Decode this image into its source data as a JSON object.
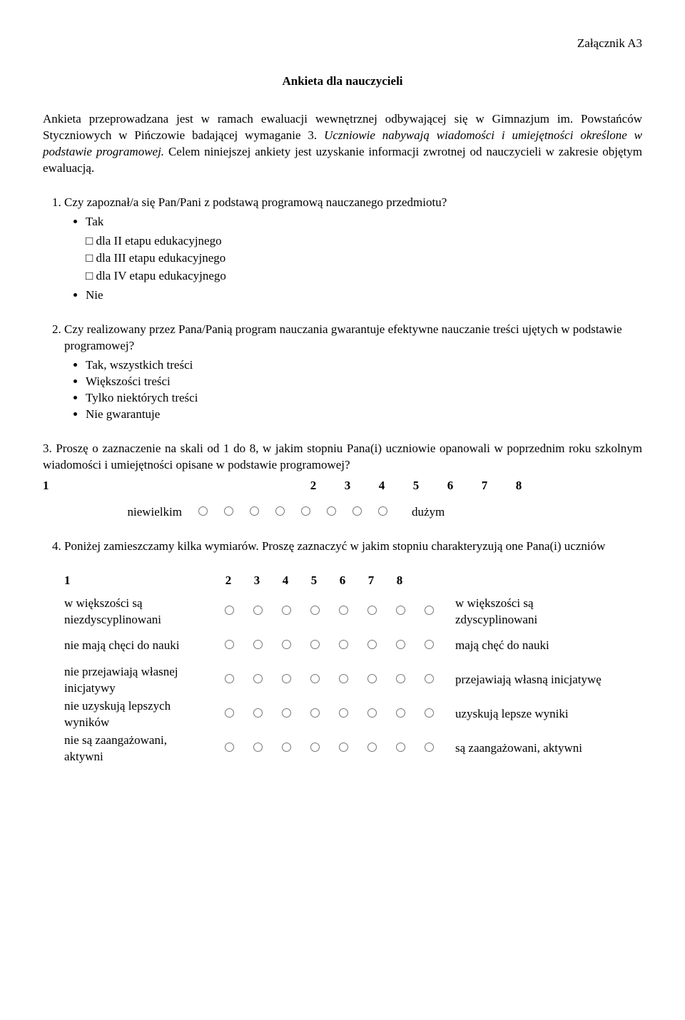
{
  "attachment": "Załącznik A3",
  "title": "Ankieta dla nauczycieli",
  "intro_plain1": "Ankieta przeprowadzana jest w ramach ewaluacji wewnętrznej odbywającej się w Gimnazjum im. Powstańców Styczniowych w Pińczowie badającej wymaganie 3.",
  "intro_italic": "Uczniowie nabywają wiadomości i umiejętności określone w podstawie programowej.",
  "intro_plain2": " Celem niniejszej ankiety jest uzyskanie informacji zwrotnej od nauczycieli w zakresie objętym ewaluacją.",
  "q1": {
    "text": "Czy zapoznał/a się Pan/Pani z podstawą programową nauczanego przedmiotu?",
    "opt_yes": "Tak",
    "chk1": "dla II etapu edukacyjnego",
    "chk2": "dla III etapu edukacyjnego",
    "chk3": "dla IV etapu edukacyjnego",
    "opt_no": "Nie"
  },
  "q2": {
    "text": "Czy realizowany przez Pana/Panią program nauczania gwarantuje efektywne nauczanie treści ujętych w podstawie programowej?",
    "o1": "Tak, wszystkich treści",
    "o2": "Większości treści",
    "o3": "Tylko niektórych treści",
    "o4": "Nie gwarantuje"
  },
  "q3": {
    "text": "3.   Proszę o zaznaczenie na skali   od 1 do 8, w jakim stopniu Pana(i) uczniowie opanowali w poprzednim roku szkolnym wiadomości i umiejętności opisane w podstawie programowej?",
    "n1": "1",
    "n2": "2",
    "n3": "3",
    "n4": "4",
    "n5": "5",
    "n6": "6",
    "n7": "7",
    "n8": "8",
    "left": "niewielkim",
    "right": "dużym"
  },
  "q4": {
    "text": "Poniżej zamieszczamy kilka wymiarów. Proszę zaznaczyć w jakim stopniu charakteryzują one Pana(i) uczniów",
    "h1": "1",
    "h2": "2",
    "h3": "3",
    "h4": "4",
    "h5": "5",
    "h6": "6",
    "h7": "7",
    "h8": "8",
    "rows": {
      "r1l": "w większości są niezdyscyplinowani",
      "r1r": "w większości są zdyscyplinowani",
      "r2l": "nie mają chęci do nauki",
      "r2r": "mają chęć do nauki",
      "r3l": "nie przejawiają własnej inicjatywy",
      "r3r": "przejawiają własną inicjatywę",
      "r4l": "nie uzyskują lepszych wyników",
      "r4r": "uzyskują lepsze wyniki",
      "r5l": "nie są zaangażowani, aktywni",
      "r5r": "są zaangażowani, aktywni"
    }
  }
}
